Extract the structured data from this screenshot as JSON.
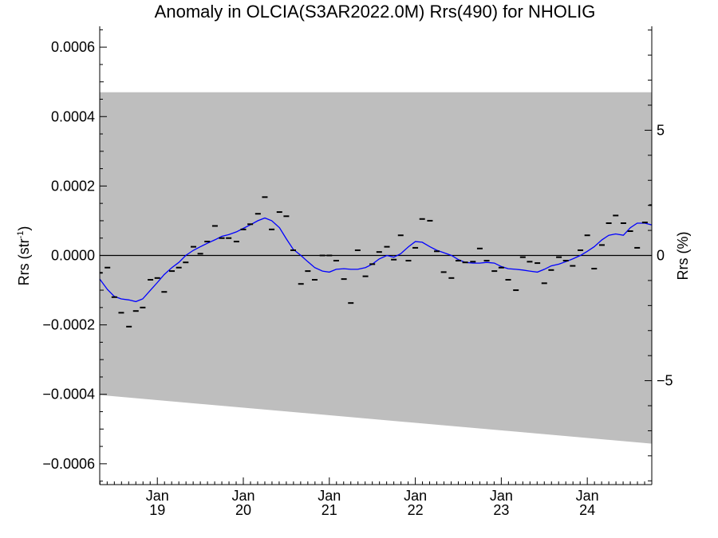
{
  "chart_data": {
    "type": "scatter",
    "title": "Anomaly in OLCIA(S3AR2022.0M) Rrs(490) for NHOLIG",
    "ylabel_main": "Rrs (str",
    "ylabel_sup": "-1",
    "ylabel_close": ")",
    "y2label": "Rrs (%)",
    "xlim": [
      2018.33,
      2024.75
    ],
    "ylim": [
      -0.00066,
      0.00066
    ],
    "y2lim": [
      -9.15,
      9.15
    ],
    "xticks": [
      {
        "value": 2019.0,
        "label_top": "Jan",
        "label_bottom": "19"
      },
      {
        "value": 2020.0,
        "label_top": "Jan",
        "label_bottom": "20"
      },
      {
        "value": 2021.0,
        "label_top": "Jan",
        "label_bottom": "21"
      },
      {
        "value": 2022.0,
        "label_top": "Jan",
        "label_bottom": "22"
      },
      {
        "value": 2023.0,
        "label_top": "Jan",
        "label_bottom": "23"
      },
      {
        "value": 2024.0,
        "label_top": "Jan",
        "label_bottom": "24"
      }
    ],
    "yticks": [
      {
        "value": 0.0006,
        "label": "0.0006"
      },
      {
        "value": 0.0004,
        "label": "0.0004"
      },
      {
        "value": 0.0002,
        "label": "0.0002"
      },
      {
        "value": 0.0,
        "label": "0.0000"
      },
      {
        "value": -0.0002,
        "label": "−0.0002"
      },
      {
        "value": -0.0004,
        "label": "−0.0004"
      },
      {
        "value": -0.0006,
        "label": "−0.0006"
      }
    ],
    "y2ticks": [
      {
        "value": 5,
        "label": "5"
      },
      {
        "value": 0,
        "label": "0"
      },
      {
        "value": -5,
        "label": "−5"
      }
    ],
    "band": {
      "x": [
        2018.33,
        2024.75
      ],
      "upper": [
        0.00047,
        0.00047
      ],
      "lower": [
        -0.000402,
        -0.000542
      ],
      "color": "#bebebe"
    },
    "zero_line": 0.0,
    "colors": {
      "points": "#000000",
      "smooth": "#0000ff",
      "band": "#bebebe"
    },
    "series": [
      {
        "kind": "points",
        "x": [
          2018.33,
          2018.42,
          2018.5,
          2018.58,
          2018.67,
          2018.75,
          2018.83,
          2018.92,
          2019.0,
          2019.08,
          2019.17,
          2019.25,
          2019.33,
          2019.42,
          2019.5,
          2019.58,
          2019.67,
          2019.75,
          2019.83,
          2019.92,
          2020.0,
          2020.08,
          2020.17,
          2020.25,
          2020.33,
          2020.42,
          2020.5,
          2020.58,
          2020.67,
          2020.75,
          2020.83,
          2020.92,
          2021.0,
          2021.08,
          2021.17,
          2021.25,
          2021.33,
          2021.42,
          2021.5,
          2021.58,
          2021.67,
          2021.75,
          2021.83,
          2021.92,
          2022.0,
          2022.08,
          2022.17,
          2022.25,
          2022.33,
          2022.42,
          2022.5,
          2022.58,
          2022.67,
          2022.75,
          2022.83,
          2022.92,
          2023.0,
          2023.08,
          2023.17,
          2023.25,
          2023.33,
          2023.42,
          2023.5,
          2023.58,
          2023.67,
          2023.75,
          2023.83,
          2023.92,
          2024.0,
          2024.08,
          2024.17,
          2024.25,
          2024.33,
          2024.42,
          2024.5,
          2024.58,
          2024.67,
          2024.75
        ],
        "y": [
          -5e-05,
          -3.5e-05,
          -0.00012,
          -0.000165,
          -0.000205,
          -0.00016,
          -0.00015,
          -7e-05,
          -6.5e-05,
          -0.000105,
          -4.5e-05,
          -3.5e-05,
          -2e-05,
          2.5e-05,
          5e-06,
          4e-05,
          8.5e-05,
          5e-05,
          5e-05,
          4e-05,
          7.5e-05,
          9e-05,
          0.00012,
          0.000168,
          7.5e-05,
          0.000125,
          0.000113,
          1.5e-05,
          -8.2e-05,
          -4.5e-05,
          -7e-05,
          0.0,
          0.0,
          -1.5e-05,
          -6.8e-05,
          -0.000137,
          1.5e-05,
          -6e-05,
          -2.5e-05,
          1e-05,
          2.5e-05,
          -1.2e-05,
          5.8e-05,
          -1.5e-05,
          2.2e-05,
          0.000105,
          0.0001,
          1.2e-05,
          -4.8e-05,
          -6.5e-05,
          -1.5e-05,
          -2e-05,
          -1.8e-05,
          2e-05,
          -1.5e-05,
          -4.5e-05,
          -3.5e-05,
          -7e-05,
          -0.0001,
          -5e-06,
          -1.8e-05,
          -2.2e-05,
          -8e-05,
          -4.2e-05,
          -5e-06,
          -1.5e-05,
          -3e-05,
          1.5e-05,
          5.8e-05,
          -3.8e-05,
          3e-05,
          9.3e-05,
          0.000115,
          9.3e-05,
          7e-05,
          2.2e-05,
          9.5e-05,
          0.000145
        ]
      },
      {
        "kind": "smooth",
        "x": [
          2018.33,
          2018.42,
          2018.5,
          2018.58,
          2018.67,
          2018.75,
          2018.83,
          2018.92,
          2019.0,
          2019.08,
          2019.17,
          2019.25,
          2019.33,
          2019.42,
          2019.5,
          2019.58,
          2019.67,
          2019.75,
          2019.83,
          2019.92,
          2020.0,
          2020.08,
          2020.17,
          2020.25,
          2020.33,
          2020.42,
          2020.5,
          2020.58,
          2020.67,
          2020.75,
          2020.83,
          2020.92,
          2021.0,
          2021.08,
          2021.17,
          2021.25,
          2021.33,
          2021.42,
          2021.5,
          2021.58,
          2021.67,
          2021.75,
          2021.83,
          2021.92,
          2022.0,
          2022.08,
          2022.17,
          2022.25,
          2022.33,
          2022.42,
          2022.5,
          2022.58,
          2022.67,
          2022.75,
          2022.83,
          2022.92,
          2023.0,
          2023.08,
          2023.17,
          2023.25,
          2023.33,
          2023.42,
          2023.5,
          2023.58,
          2023.67,
          2023.75,
          2023.83,
          2023.92,
          2024.0,
          2024.08,
          2024.17,
          2024.25,
          2024.33,
          2024.42,
          2024.5,
          2024.58,
          2024.67,
          2024.75
        ],
        "y": [
          -6.8e-05,
          -9.8e-05,
          -0.000118,
          -0.000125,
          -0.000128,
          -0.000133,
          -0.000125,
          -0.0001,
          -7.8e-05,
          -5.5e-05,
          -3.5e-05,
          -2e-05,
          0.0,
          1.5e-05,
          2.5e-05,
          3.5e-05,
          4.5e-05,
          5.5e-05,
          6e-05,
          6.8e-05,
          7.8e-05,
          8.8e-05,
          0.0001,
          0.000108,
          0.0001,
          8e-05,
          4.8e-05,
          1.8e-05,
          0.0,
          -1.8e-05,
          -3.5e-05,
          -4.5e-05,
          -4.8e-05,
          -4e-05,
          -3.8e-05,
          -4e-05,
          -4e-05,
          -3.5e-05,
          -2.5e-05,
          -1e-05,
          0.0,
          -5e-06,
          5e-06,
          2.5e-05,
          4e-05,
          3.8e-05,
          2.5e-05,
          1.5e-05,
          8e-06,
          0.0,
          -1.2e-05,
          -2e-05,
          -2.2e-05,
          -2.2e-05,
          -2e-05,
          -2.2e-05,
          -3.2e-05,
          -3.8e-05,
          -4e-05,
          -4.2e-05,
          -4.5e-05,
          -4.8e-05,
          -4e-05,
          -3e-05,
          -2.5e-05,
          -1.8e-05,
          -1e-05,
          0.0,
          1.2e-05,
          2.5e-05,
          4.5e-05,
          5.8e-05,
          6.2e-05,
          5.8e-05,
          8e-05,
          9.3e-05,
          9.3e-05,
          8.8e-05
        ]
      }
    ]
  }
}
